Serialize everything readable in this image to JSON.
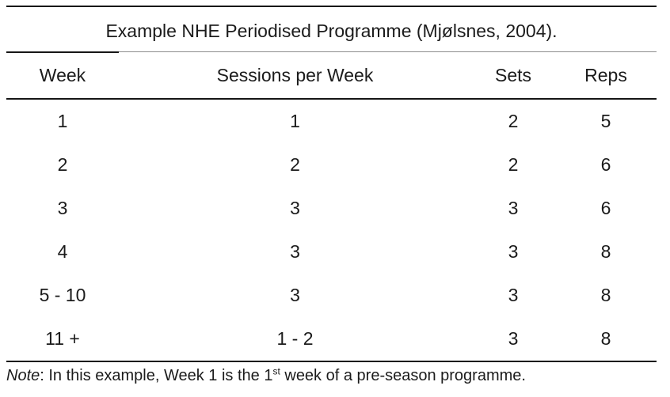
{
  "table": {
    "title": "Example NHE Periodised Programme (Mjølsnes, 2004).",
    "columns": [
      "Week",
      "Sessions per Week",
      "Sets",
      "Reps"
    ],
    "rows": [
      {
        "week": "1",
        "sessions": "1",
        "sets": "2",
        "reps": "5"
      },
      {
        "week": "2",
        "sessions": "2",
        "sets": "2",
        "reps": "6"
      },
      {
        "week": "3",
        "sessions": "3",
        "sets": "3",
        "reps": "6"
      },
      {
        "week": "4",
        "sessions": "3",
        "sets": "3",
        "reps": "8"
      },
      {
        "week": "5 - 10",
        "sessions": "3",
        "sets": "3",
        "reps": "8"
      },
      {
        "week": "11 +",
        "sessions": "1 - 2",
        "sets": "3",
        "reps": "8"
      }
    ]
  },
  "note": {
    "label": "Note",
    "text_before_sup": ": In this example, Week 1 is the 1",
    "superscript": "st",
    "text_after_sup": " week of a pre-season programme."
  },
  "colors": {
    "background": "#ffffff",
    "text": "#1b1b1b",
    "rule_black": "#161616",
    "rule_gray": "#8c8c8c"
  }
}
